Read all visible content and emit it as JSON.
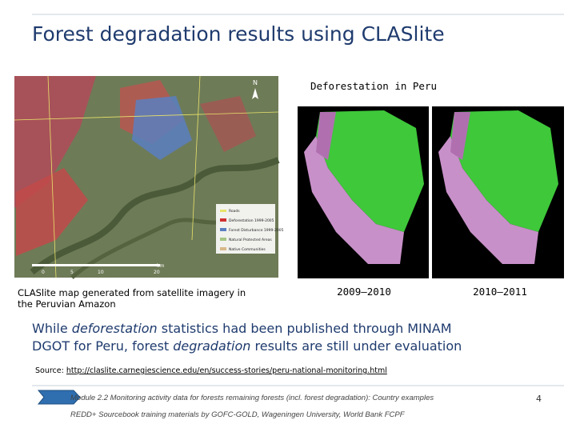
{
  "header": {
    "title": "Forest degradation results using CLASlite"
  },
  "map": {
    "caption": [
      "CLASlite map generated from satellite imagery in",
      "the Peruvian Amazon"
    ],
    "legend": [
      "Roads",
      "Deforestation 1999-2005",
      "Forest Disturbance 1999-2005",
      "Natural Protected Areas",
      "Native Communities"
    ],
    "scale": [
      "0",
      "5",
      "10",
      "20"
    ],
    "scale_unit": "km",
    "north": "N"
  },
  "panel": {
    "title": "Deforestation in Peru",
    "labels": [
      "2009–2010",
      "2010–2011"
    ]
  },
  "body": {
    "lines": [
      [
        "While ",
        "deforestation",
        " statistics had been published through MINAM"
      ],
      [
        "DGOT for Peru, forest ",
        "degradation",
        " results are still under evaluation"
      ]
    ]
  },
  "source": {
    "label": "Source:",
    "url": "http://claslite.carnegiescience.edu/en/success-stories/peru-national-monitoring.html"
  },
  "footer": {
    "lines": [
      "Module 2.2 Monitoring activity data for forests remaining forests (incl. forest degradation): Country examples",
      "REDD+ Sourcebook training materials by GOFC-GOLD, Wageningen University, World Bank FCPF"
    ],
    "page": 4
  }
}
